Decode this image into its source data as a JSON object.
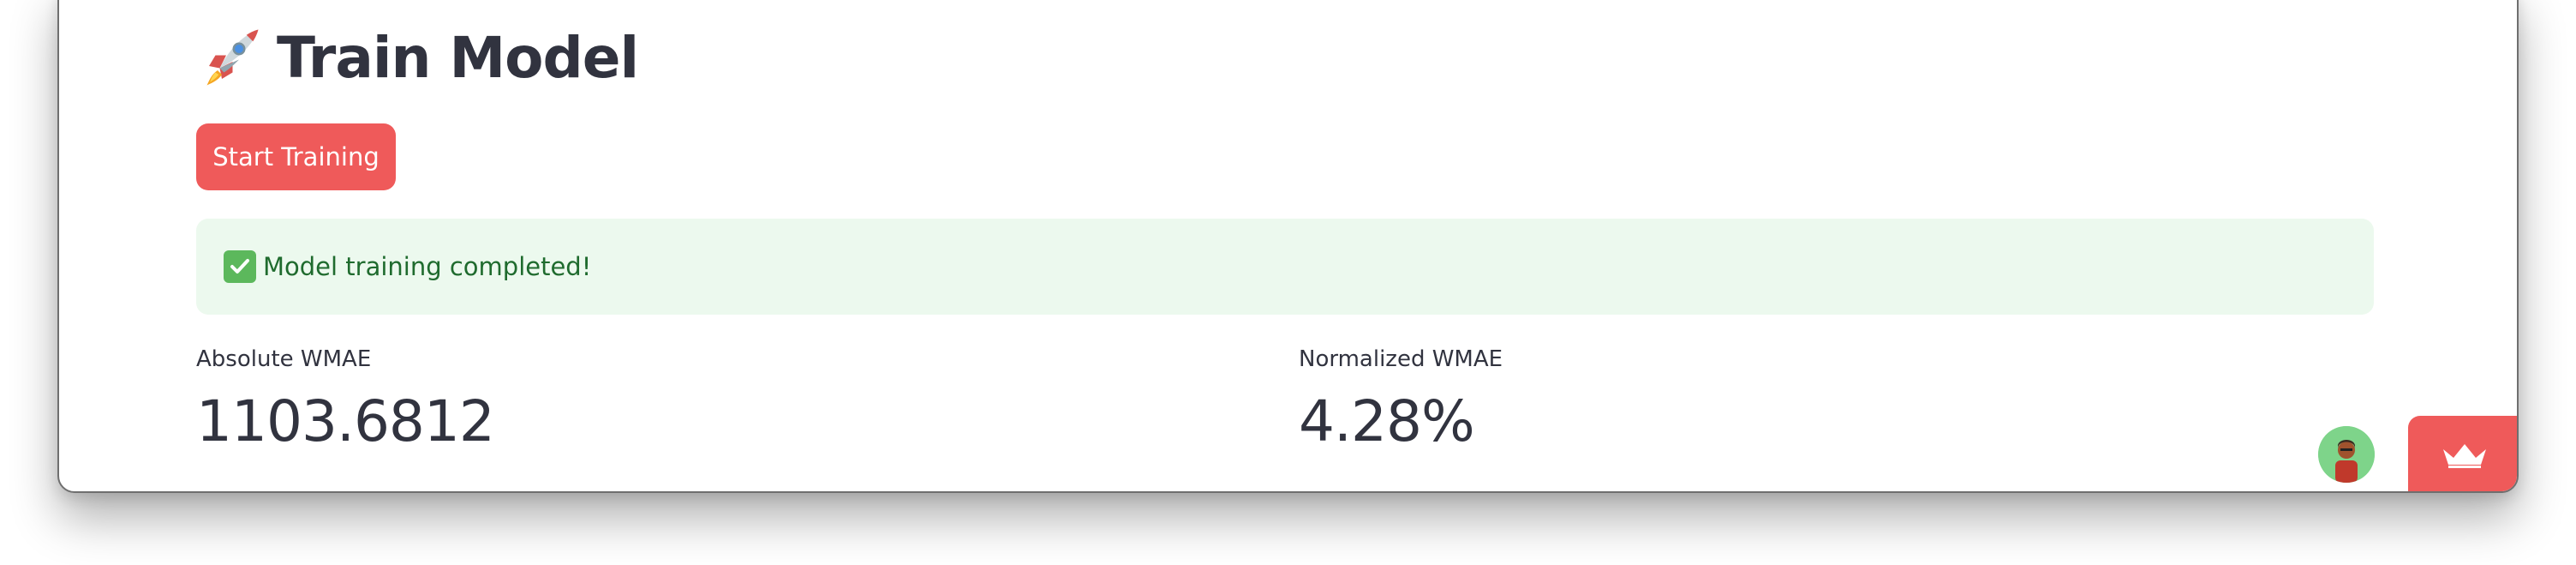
{
  "page": {
    "title": "Train Model",
    "title_icon": "rocket-icon",
    "accent_color": "#ef5a5a"
  },
  "actions": {
    "start_training_label": "Start Training"
  },
  "alert": {
    "icon": "check-mark-icon",
    "message": "Model training completed!",
    "background": "#ecf9ee",
    "text_color": "#1f6b2e"
  },
  "metrics": [
    {
      "label": "Absolute WMAE",
      "value": "1103.6812"
    },
    {
      "label": "Normalized WMAE",
      "value": "4.28%"
    }
  ],
  "footer": {
    "avatar_icon": "user-avatar-icon",
    "badge_icon": "crown-icon"
  }
}
